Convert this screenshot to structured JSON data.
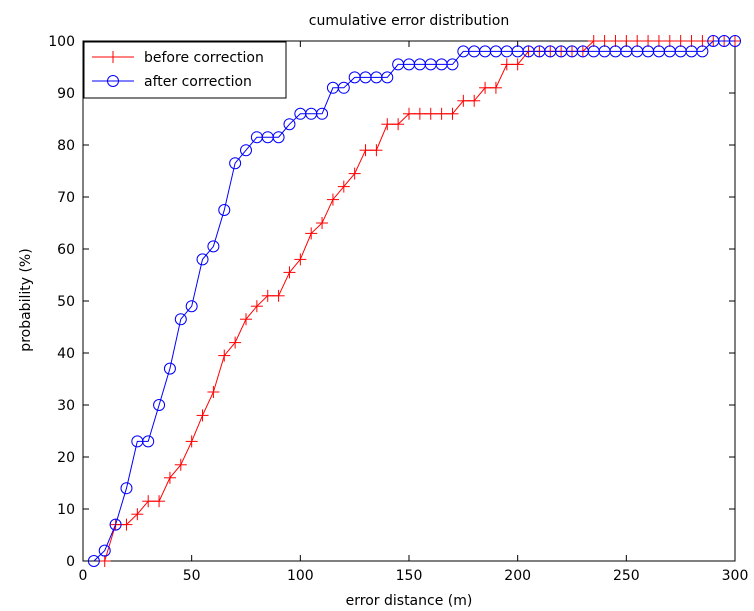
{
  "chart_data": {
    "type": "line",
    "title": "cumulative error distribution",
    "xlabel": "error distance (m)",
    "ylabel": "probability (%)",
    "xlim": [
      0,
      300
    ],
    "ylim": [
      0,
      100
    ],
    "xticks": [
      "0",
      "50",
      "100",
      "150",
      "200",
      "250",
      "300"
    ],
    "yticks": [
      "0",
      "10",
      "20",
      "30",
      "40",
      "50",
      "60",
      "70",
      "80",
      "90",
      "100"
    ],
    "grid": false,
    "legend_position": "top-left",
    "series": [
      {
        "name": "before correction",
        "color": "#ff0000",
        "marker": "plus",
        "x": [
          10,
          15,
          20,
          25,
          30,
          35,
          40,
          45,
          50,
          55,
          60,
          65,
          70,
          75,
          80,
          85,
          90,
          95,
          100,
          105,
          110,
          115,
          120,
          125,
          130,
          135,
          140,
          145,
          150,
          155,
          160,
          165,
          170,
          175,
          180,
          185,
          190,
          195,
          200,
          205,
          210,
          215,
          220,
          225,
          230,
          235,
          240,
          245,
          250,
          255,
          260,
          265,
          270,
          275,
          280,
          285,
          290,
          295,
          300
        ],
        "y": [
          0,
          7,
          7,
          9,
          11.5,
          11.5,
          16,
          18.5,
          23,
          28,
          32.5,
          39.5,
          42,
          46.5,
          49,
          51,
          51,
          55.5,
          58,
          63,
          65,
          69.5,
          72,
          74.5,
          79,
          79,
          84,
          84,
          86,
          86,
          86,
          86,
          86,
          88.5,
          88.5,
          91,
          91,
          95.5,
          95.5,
          98,
          98,
          98,
          98,
          98,
          98,
          100,
          100,
          100,
          100,
          100,
          100,
          100,
          100,
          100,
          100,
          100,
          100,
          100,
          100
        ]
      },
      {
        "name": "after correction",
        "color": "#0000ff",
        "marker": "circle",
        "x": [
          5,
          10,
          15,
          20,
          25,
          30,
          35,
          40,
          45,
          50,
          55,
          60,
          65,
          70,
          75,
          80,
          85,
          90,
          95,
          100,
          105,
          110,
          115,
          120,
          125,
          130,
          135,
          140,
          145,
          150,
          155,
          160,
          165,
          170,
          175,
          180,
          185,
          190,
          195,
          200,
          205,
          210,
          215,
          220,
          225,
          230,
          235,
          240,
          245,
          250,
          255,
          260,
          265,
          270,
          275,
          280,
          285,
          290,
          295,
          300
        ],
        "y": [
          0,
          2,
          7,
          14,
          23,
          23,
          30,
          37,
          46.5,
          49,
          58,
          60.5,
          67.5,
          76.5,
          79,
          81.5,
          81.5,
          81.5,
          84,
          86,
          86,
          86,
          91,
          91,
          93,
          93,
          93,
          93,
          95.5,
          95.5,
          95.5,
          95.5,
          95.5,
          95.5,
          98,
          98,
          98,
          98,
          98,
          98,
          98,
          98,
          98,
          98,
          98,
          98,
          98,
          98,
          98,
          98,
          98,
          98,
          98,
          98,
          98,
          98,
          98,
          100,
          100,
          100
        ]
      }
    ]
  }
}
